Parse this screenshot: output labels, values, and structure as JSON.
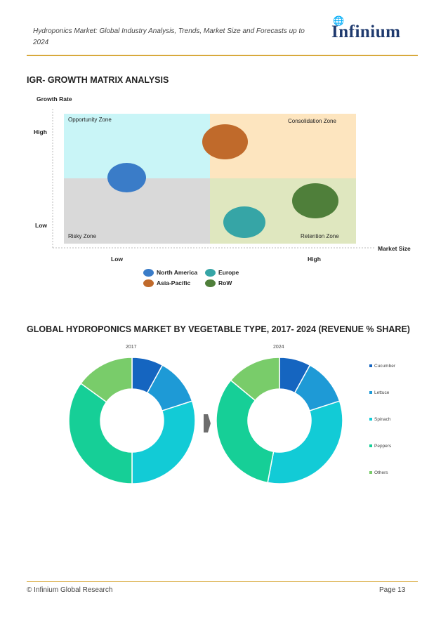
{
  "header": {
    "title": "Hydroponics Market: Global Industry Analysis, Trends, Market Size and Forecasts up to 2024",
    "logo_text": "Infinium"
  },
  "matrix": {
    "section_title": "IGR- GROWTH MATRIX ANALYSIS",
    "y_axis_label": "Growth Rate",
    "x_axis_label": "Market Size",
    "y_high": "High",
    "y_low": "Low",
    "x_low": "Low",
    "x_high": "High",
    "zones": {
      "opportunity": "Opportunity Zone",
      "consolidation": "Consolidation Zone",
      "risky": "Risky Zone",
      "retention": "Retention Zone"
    },
    "colors": {
      "opportunity": "#c9f5f7",
      "consolidation": "#fde5bf",
      "risky": "#d9d9d9",
      "retention": "#dfe7bf"
    },
    "legend": [
      {
        "name": "North America",
        "color": "#3a7cc8"
      },
      {
        "name": "Europe",
        "color": "#36a5a6"
      },
      {
        "name": "Asia-Pacific",
        "color": "#c06a2b"
      },
      {
        "name": "RoW",
        "color": "#4f7f3a"
      }
    ]
  },
  "donut_section": {
    "section_title": "GLOBAL HYDROPONICS MARKET BY VEGETABLE TYPE, 2017- 2024 (REVENUE % SHARE)"
  },
  "chart_data": {
    "type": "pie",
    "variant": "donut",
    "categories": [
      "Cucumber",
      "Lettuce",
      "Spinach",
      "Peppers",
      "Others"
    ],
    "colors": [
      "#1565c0",
      "#1e9ad6",
      "#12cbd6",
      "#16cf97",
      "#79cc6a"
    ],
    "series": [
      {
        "name": "2017",
        "values": [
          8,
          12,
          30,
          35,
          15
        ]
      },
      {
        "name": "2024",
        "values": [
          8,
          12,
          33,
          33,
          14
        ]
      }
    ],
    "legend_placement": "right"
  },
  "footer": {
    "left": "© Infinium Global Research",
    "right": "Page 13"
  }
}
